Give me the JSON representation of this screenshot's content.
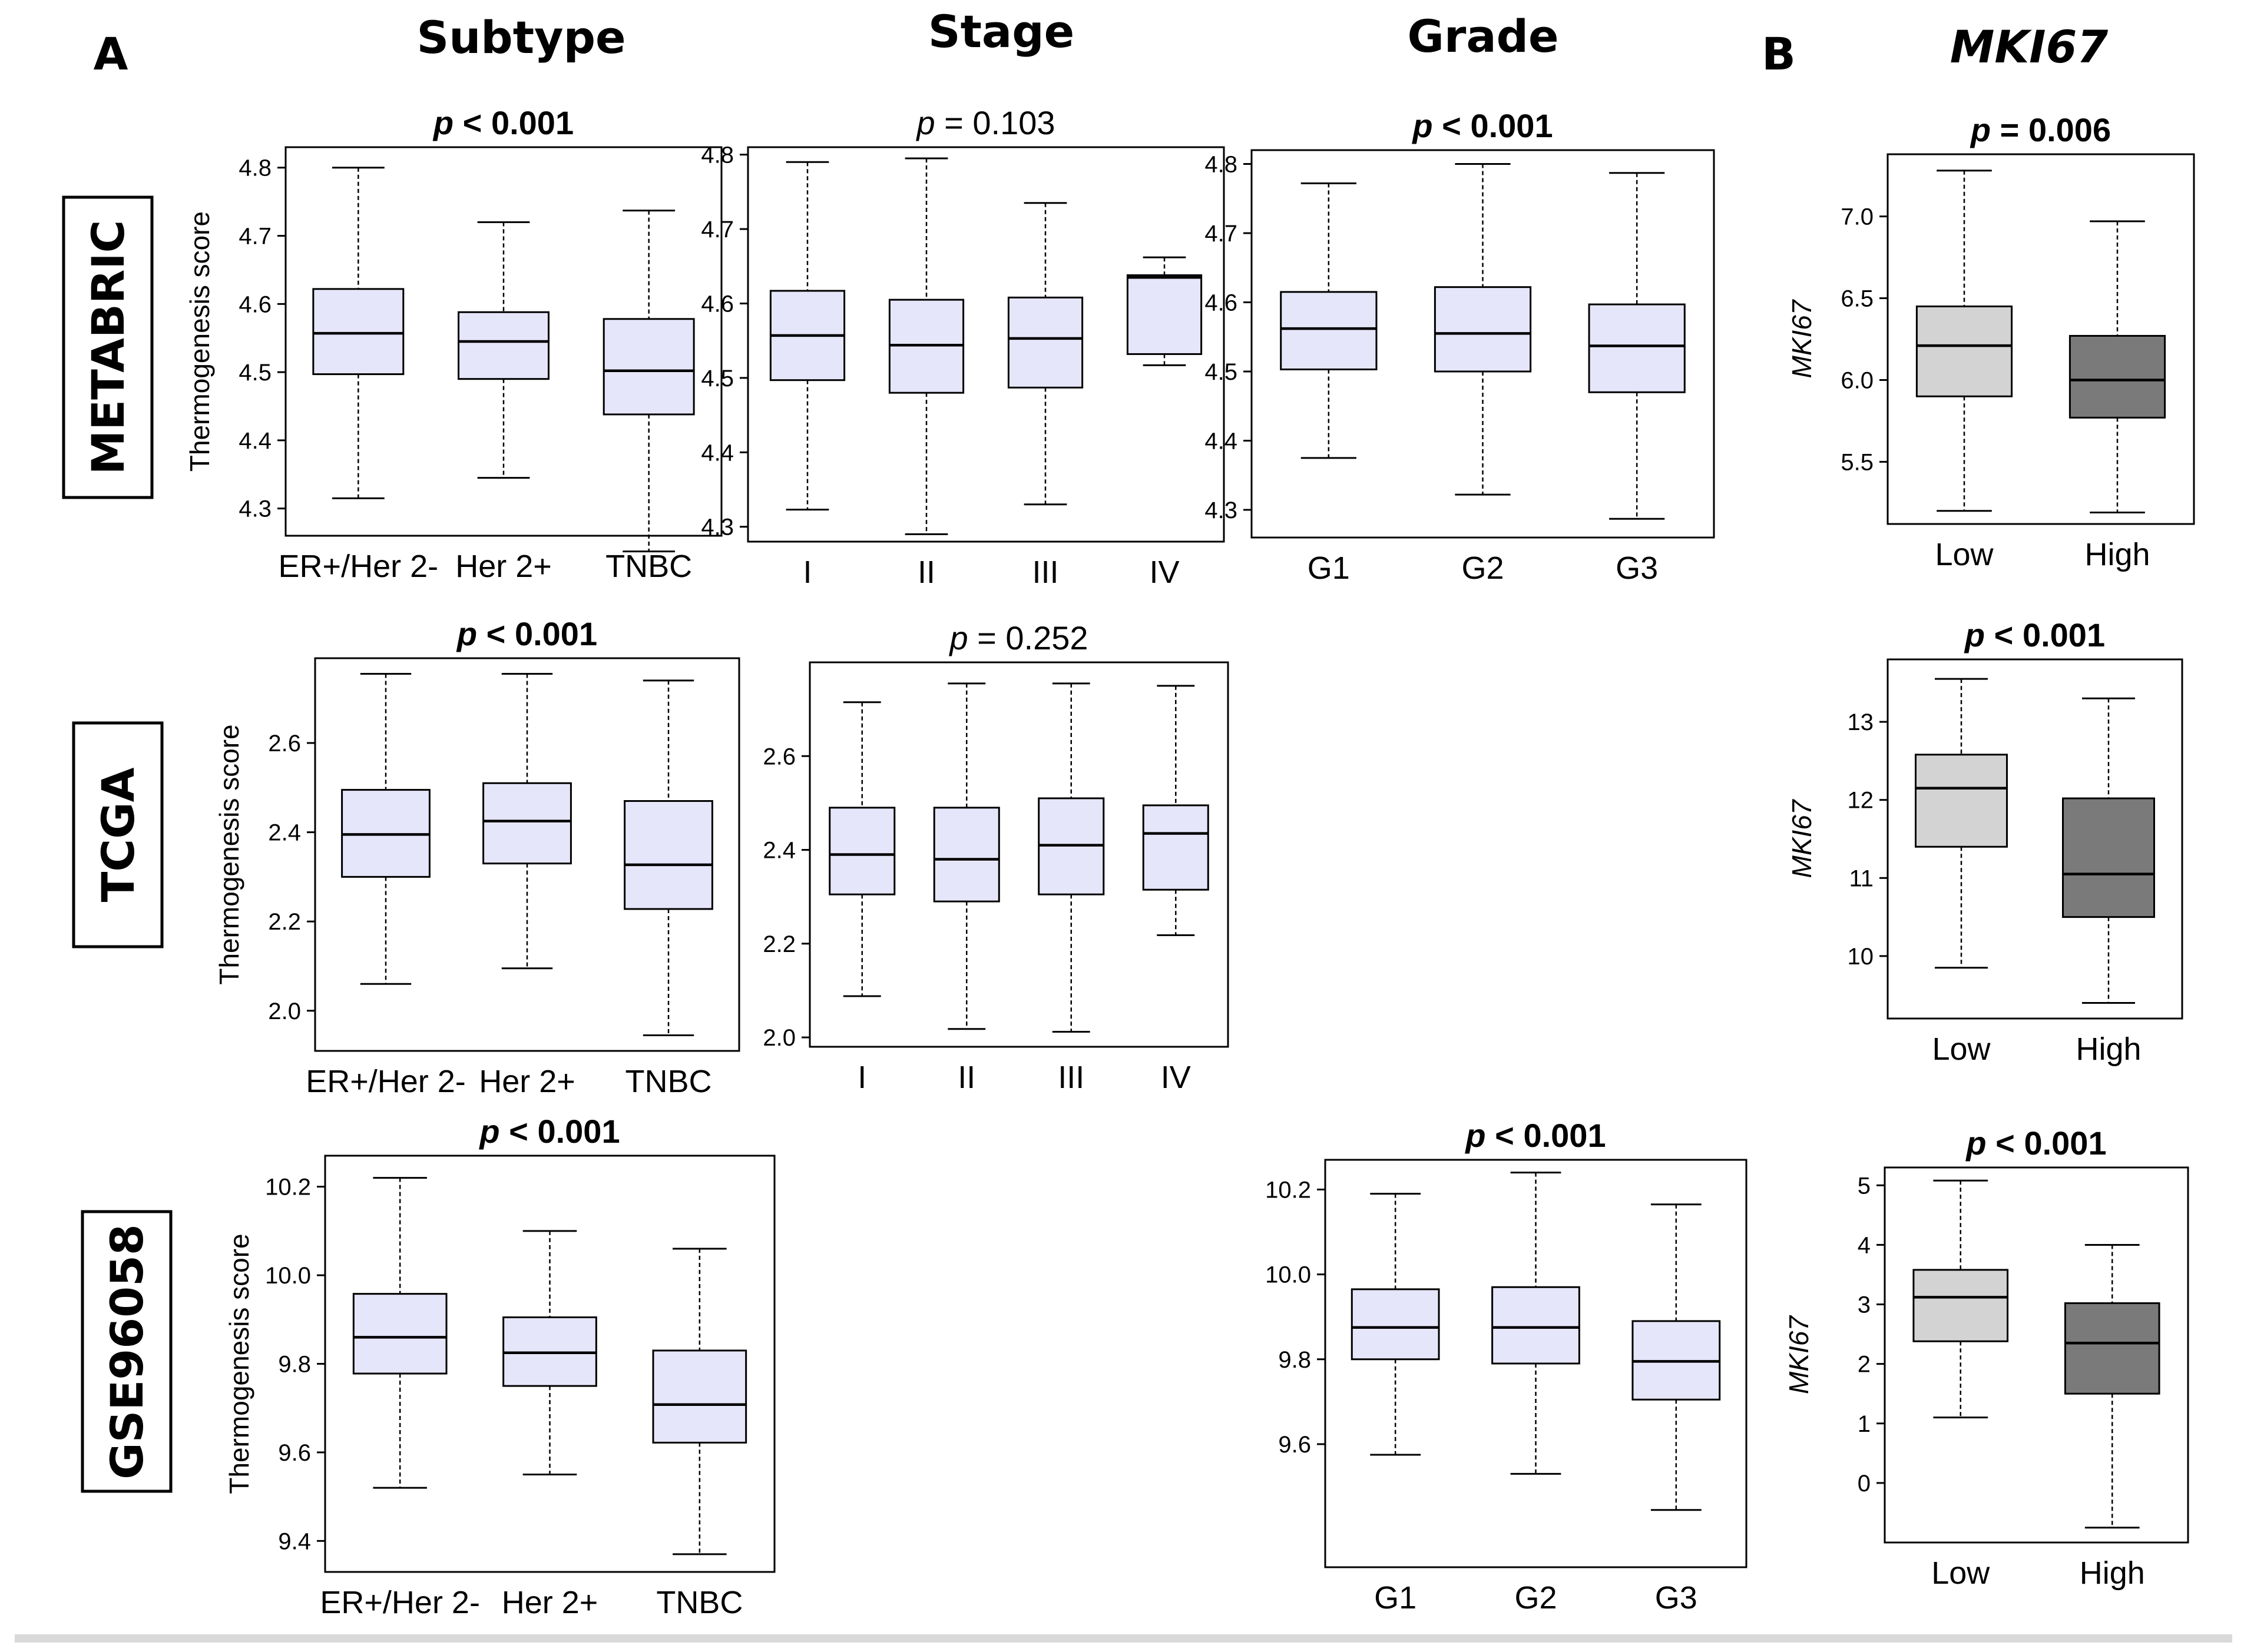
{
  "panel_labels": {
    "a": "A",
    "b": "B"
  },
  "column_headers": {
    "subtype": "Subtype",
    "stage": "Stage",
    "grade": "Grade",
    "mki67": "MKI67"
  },
  "row_labels": {
    "metabric": "METABRIC",
    "tcga": "TCGA",
    "gse": "GSE96058"
  },
  "colors": {
    "score_box": "#e6e6fa",
    "low_box": "#d3d3d3",
    "high_box": "#7a7a7a"
  },
  "chart_data": [
    {
      "id": "metabric-subtype",
      "type": "boxplot",
      "p_label": "p < 0.001",
      "p_bold": true,
      "ylabel": "Thermogenesis score",
      "ylabel_italic": false,
      "yticks": [
        4.3,
        4.4,
        4.5,
        4.6,
        4.7,
        4.8
      ],
      "ylim": [
        4.26,
        4.83
      ],
      "categories": [
        "ER+/Her 2-",
        "Her 2+",
        "TNBC"
      ],
      "boxes": [
        {
          "min": 4.315,
          "q1": 4.497,
          "median": 4.557,
          "q3": 4.622,
          "max": 4.8,
          "color": "#e6e6fa"
        },
        {
          "min": 4.345,
          "q1": 4.49,
          "median": 4.545,
          "q3": 4.588,
          "max": 4.72,
          "color": "#e6e6fa"
        },
        {
          "min": 4.237,
          "q1": 4.438,
          "median": 4.502,
          "q3": 4.578,
          "max": 4.737,
          "color": "#e6e6fa"
        }
      ]
    },
    {
      "id": "metabric-stage",
      "type": "boxplot",
      "p_label": "p = 0.103",
      "p_bold": false,
      "ylabel": "",
      "ylabel_italic": false,
      "yticks": [
        4.3,
        4.4,
        4.5,
        4.6,
        4.7,
        4.8
      ],
      "ylim": [
        4.28,
        4.81
      ],
      "categories": [
        "I",
        "II",
        "III",
        "IV"
      ],
      "boxes": [
        {
          "min": 4.323,
          "q1": 4.497,
          "median": 4.557,
          "q3": 4.617,
          "max": 4.79,
          "color": "#e6e6fa"
        },
        {
          "min": 4.29,
          "q1": 4.48,
          "median": 4.544,
          "q3": 4.605,
          "max": 4.795,
          "color": "#e6e6fa"
        },
        {
          "min": 4.33,
          "q1": 4.487,
          "median": 4.553,
          "q3": 4.608,
          "max": 4.735,
          "color": "#e6e6fa"
        },
        {
          "min": 4.517,
          "q1": 4.532,
          "median": 4.635,
          "q3": 4.638,
          "max": 4.662,
          "color": "#e6e6fa"
        }
      ]
    },
    {
      "id": "metabric-grade",
      "type": "boxplot",
      "p_label": "p < 0.001",
      "p_bold": true,
      "ylabel": "",
      "ylabel_italic": false,
      "yticks": [
        4.3,
        4.4,
        4.5,
        4.6,
        4.7,
        4.8
      ],
      "ylim": [
        4.26,
        4.82
      ],
      "categories": [
        "G1",
        "G2",
        "G3"
      ],
      "boxes": [
        {
          "min": 4.375,
          "q1": 4.503,
          "median": 4.562,
          "q3": 4.615,
          "max": 4.772,
          "color": "#e6e6fa"
        },
        {
          "min": 4.322,
          "q1": 4.5,
          "median": 4.555,
          "q3": 4.622,
          "max": 4.8,
          "color": "#e6e6fa"
        },
        {
          "min": 4.287,
          "q1": 4.47,
          "median": 4.537,
          "q3": 4.597,
          "max": 4.787,
          "color": "#e6e6fa"
        }
      ]
    },
    {
      "id": "metabric-mki67",
      "type": "boxplot",
      "p_label": "p = 0.006",
      "p_bold": true,
      "ylabel": "MKI67",
      "ylabel_italic": true,
      "yticks": [
        5.5,
        6.0,
        6.5,
        7.0
      ],
      "yticklabels": [
        "5.5",
        "6.0",
        "6.5",
        "7.0"
      ],
      "ylim": [
        5.12,
        7.38
      ],
      "categories": [
        "Low",
        "High"
      ],
      "boxes": [
        {
          "min": 5.2,
          "q1": 5.9,
          "median": 6.21,
          "q3": 6.45,
          "max": 7.28,
          "color": "#d3d3d3"
        },
        {
          "min": 5.19,
          "q1": 5.77,
          "median": 6.0,
          "q3": 6.27,
          "max": 6.97,
          "color": "#7a7a7a"
        }
      ]
    },
    {
      "id": "tcga-subtype",
      "type": "boxplot",
      "p_label": "p < 0.001",
      "p_bold": true,
      "ylabel": "Thermogenesis score",
      "ylabel_italic": false,
      "yticks": [
        2.0,
        2.2,
        2.4,
        2.6
      ],
      "yticklabels": [
        "2.0",
        "2.2",
        "2.4",
        "2.6"
      ],
      "ylim": [
        1.91,
        2.79
      ],
      "categories": [
        "ER+/Her 2-",
        "Her 2+",
        "TNBC"
      ],
      "boxes": [
        {
          "min": 2.06,
          "q1": 2.3,
          "median": 2.395,
          "q3": 2.495,
          "max": 2.755,
          "color": "#e6e6fa"
        },
        {
          "min": 2.095,
          "q1": 2.33,
          "median": 2.425,
          "q3": 2.51,
          "max": 2.755,
          "color": "#e6e6fa"
        },
        {
          "min": 1.945,
          "q1": 2.228,
          "median": 2.327,
          "q3": 2.47,
          "max": 2.74,
          "color": "#e6e6fa"
        }
      ]
    },
    {
      "id": "tcga-stage",
      "type": "boxplot",
      "p_label": "p = 0.252",
      "p_bold": false,
      "ylabel": "",
      "ylabel_italic": false,
      "yticks": [
        2.0,
        2.2,
        2.4,
        2.6
      ],
      "yticklabels": [
        "2.0",
        "2.2",
        "2.4",
        "2.6"
      ],
      "ylim": [
        1.98,
        2.8
      ],
      "categories": [
        "I",
        "II",
        "III",
        "IV"
      ],
      "boxes": [
        {
          "min": 2.088,
          "q1": 2.305,
          "median": 2.39,
          "q3": 2.49,
          "max": 2.715,
          "color": "#e6e6fa"
        },
        {
          "min": 2.018,
          "q1": 2.29,
          "median": 2.38,
          "q3": 2.49,
          "max": 2.755,
          "color": "#e6e6fa"
        },
        {
          "min": 2.012,
          "q1": 2.305,
          "median": 2.41,
          "q3": 2.51,
          "max": 2.755,
          "color": "#e6e6fa"
        },
        {
          "min": 2.218,
          "q1": 2.315,
          "median": 2.435,
          "q3": 2.495,
          "max": 2.75,
          "color": "#e6e6fa"
        }
      ]
    },
    {
      "id": "tcga-mki67",
      "type": "boxplot",
      "p_label": "p < 0.001",
      "p_bold": true,
      "ylabel": "MKI67",
      "ylabel_italic": true,
      "yticks": [
        10,
        11,
        12,
        13
      ],
      "ylim": [
        9.2,
        13.8
      ],
      "categories": [
        "Low",
        "High"
      ],
      "boxes": [
        {
          "min": 9.85,
          "q1": 11.4,
          "median": 12.15,
          "q3": 12.58,
          "max": 13.55,
          "color": "#d3d3d3"
        },
        {
          "min": 9.4,
          "q1": 10.5,
          "median": 11.05,
          "q3": 12.02,
          "max": 13.3,
          "color": "#7a7a7a"
        }
      ]
    },
    {
      "id": "gse-subtype",
      "type": "boxplot",
      "p_label": "p < 0.001",
      "p_bold": true,
      "ylabel": "Thermogenesis score",
      "ylabel_italic": false,
      "yticks": [
        9.4,
        9.6,
        9.8,
        10.0,
        10.2
      ],
      "yticklabels": [
        "9.4",
        "9.6",
        "9.8",
        "10.0",
        "10.2"
      ],
      "ylim": [
        9.33,
        10.27
      ],
      "categories": [
        "ER+/Her 2-",
        "Her 2+",
        "TNBC"
      ],
      "boxes": [
        {
          "min": 9.52,
          "q1": 9.778,
          "median": 9.86,
          "q3": 9.958,
          "max": 10.22,
          "color": "#e6e6fa"
        },
        {
          "min": 9.55,
          "q1": 9.75,
          "median": 9.825,
          "q3": 9.905,
          "max": 10.1,
          "color": "#e6e6fa"
        },
        {
          "min": 9.37,
          "q1": 9.622,
          "median": 9.708,
          "q3": 9.83,
          "max": 10.06,
          "color": "#e6e6fa"
        }
      ]
    },
    {
      "id": "gse-grade",
      "type": "boxplot",
      "p_label": "p < 0.001",
      "p_bold": true,
      "ylabel": "",
      "ylabel_italic": false,
      "yticks": [
        9.6,
        9.8,
        10.0,
        10.2
      ],
      "yticklabels": [
        "9.6",
        "9.8",
        "10.0",
        "10.2"
      ],
      "ylim": [
        9.31,
        10.27
      ],
      "categories": [
        "G1",
        "G2",
        "G3"
      ],
      "boxes": [
        {
          "min": 9.575,
          "q1": 9.8,
          "median": 9.875,
          "q3": 9.965,
          "max": 10.19,
          "color": "#e6e6fa"
        },
        {
          "min": 9.53,
          "q1": 9.79,
          "median": 9.875,
          "q3": 9.97,
          "max": 10.24,
          "color": "#e6e6fa"
        },
        {
          "min": 9.445,
          "q1": 9.705,
          "median": 9.795,
          "q3": 9.89,
          "max": 10.165,
          "color": "#e6e6fa"
        }
      ]
    },
    {
      "id": "gse-mki67",
      "type": "boxplot",
      "p_label": "p < 0.001",
      "p_bold": true,
      "ylabel": "MKI67",
      "ylabel_italic": true,
      "yticks": [
        0,
        1,
        2,
        3,
        4,
        5
      ],
      "ylim": [
        -1.0,
        5.3
      ],
      "categories": [
        "Low",
        "High"
      ],
      "boxes": [
        {
          "min": 1.1,
          "q1": 2.38,
          "median": 3.12,
          "q3": 3.58,
          "max": 5.08,
          "color": "#d3d3d3"
        },
        {
          "min": -0.75,
          "q1": 1.5,
          "median": 2.35,
          "q3": 3.02,
          "max": 4.0,
          "color": "#7a7a7a"
        }
      ]
    }
  ]
}
